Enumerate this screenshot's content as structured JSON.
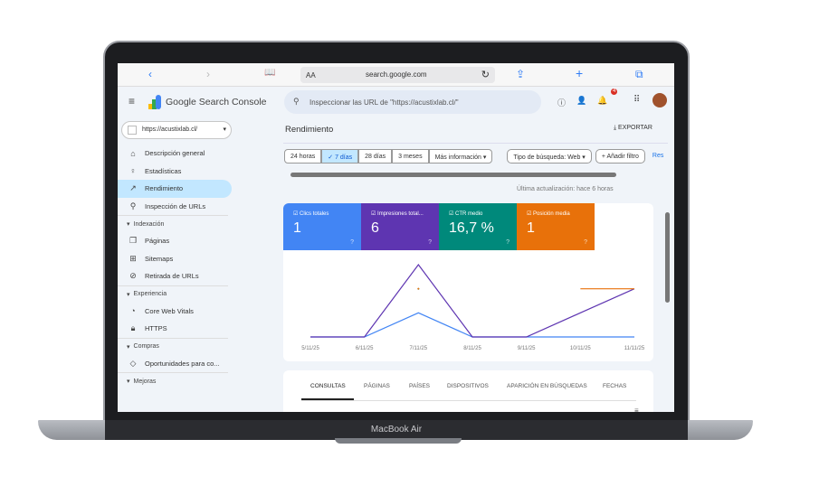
{
  "device": {
    "label": "MacBook Air"
  },
  "browser": {
    "text_size": "AA",
    "host": "search.google.com"
  },
  "app": {
    "title": "Google Search Console",
    "search_placeholder": "Inspeccionar las URL de \"https://acustixlab.cl/\"",
    "notification_count": "4"
  },
  "sidebar": {
    "property": "https://acustixlab.cl/",
    "items": [
      {
        "label": "Descripción general",
        "icon": "home-icon"
      },
      {
        "label": "Estadísticas",
        "icon": "lightbulb-icon"
      },
      {
        "label": "Rendimiento",
        "icon": "trending-icon",
        "active": true
      },
      {
        "label": "Inspección de URLs",
        "icon": "search-icon"
      }
    ],
    "sections": [
      {
        "label": "Indexación",
        "items": [
          {
            "label": "Páginas"
          },
          {
            "label": "Sitemaps"
          },
          {
            "label": "Retirada de URLs"
          }
        ]
      },
      {
        "label": "Experiencia",
        "items": [
          {
            "label": "Core Web Vitals"
          },
          {
            "label": "HTTPS"
          }
        ]
      },
      {
        "label": "Compras",
        "items": [
          {
            "label": "Oportunidades para co..."
          }
        ]
      },
      {
        "label": "Mejoras",
        "items": []
      }
    ]
  },
  "main": {
    "title": "Rendimiento",
    "export": "EXPORTAR",
    "filters": [
      "24 horas",
      "7 días",
      "28 días",
      "3 meses",
      "Más información"
    ],
    "selected_filter": "7 días",
    "search_type": "Tipo de búsqueda: Web",
    "add_filter": "Añadir filtro",
    "reset": "Res",
    "last_update": "Última actualización: hace 6 horas",
    "metrics": [
      {
        "label": "Clics totales",
        "value": "1",
        "color": "#4285f4"
      },
      {
        "label": "Impresiones total...",
        "value": "6",
        "color": "#5e35b1"
      },
      {
        "label": "CTR medio",
        "value": "16,7 %",
        "color": "#00897b"
      },
      {
        "label": "Posición media",
        "value": "1",
        "color": "#e8710a"
      }
    ],
    "tabs": [
      "CONSULTAS",
      "PÁGINAS",
      "PAÍSES",
      "DISPOSITIVOS",
      "APARICIÓN EN BÚSQUEDAS",
      "FECHAS"
    ],
    "active_tab": "CONSULTAS"
  },
  "chart_data": {
    "type": "line",
    "categories": [
      "5/11/25",
      "6/11/25",
      "7/11/25",
      "8/11/25",
      "9/11/25",
      "10/11/25",
      "11/11/25"
    ],
    "series": [
      {
        "name": "Clics totales",
        "color": "#4285f4",
        "values": [
          0,
          0,
          1,
          0,
          0,
          0,
          0
        ],
        "ymax": 3
      },
      {
        "name": "Impresiones",
        "color": "#5e35b1",
        "values": [
          0,
          0,
          3,
          0,
          0,
          1,
          2
        ],
        "ymax": 3
      },
      {
        "name": "CTR medio",
        "color": "#00897b",
        "values": [
          null,
          null,
          33.3,
          null,
          null,
          null,
          null
        ],
        "ymax": 50
      },
      {
        "name": "Posición media",
        "color": "#e8710a",
        "values": [
          null,
          null,
          1,
          null,
          null,
          1,
          1
        ],
        "ymax": 1.5
      }
    ],
    "grid": false
  }
}
